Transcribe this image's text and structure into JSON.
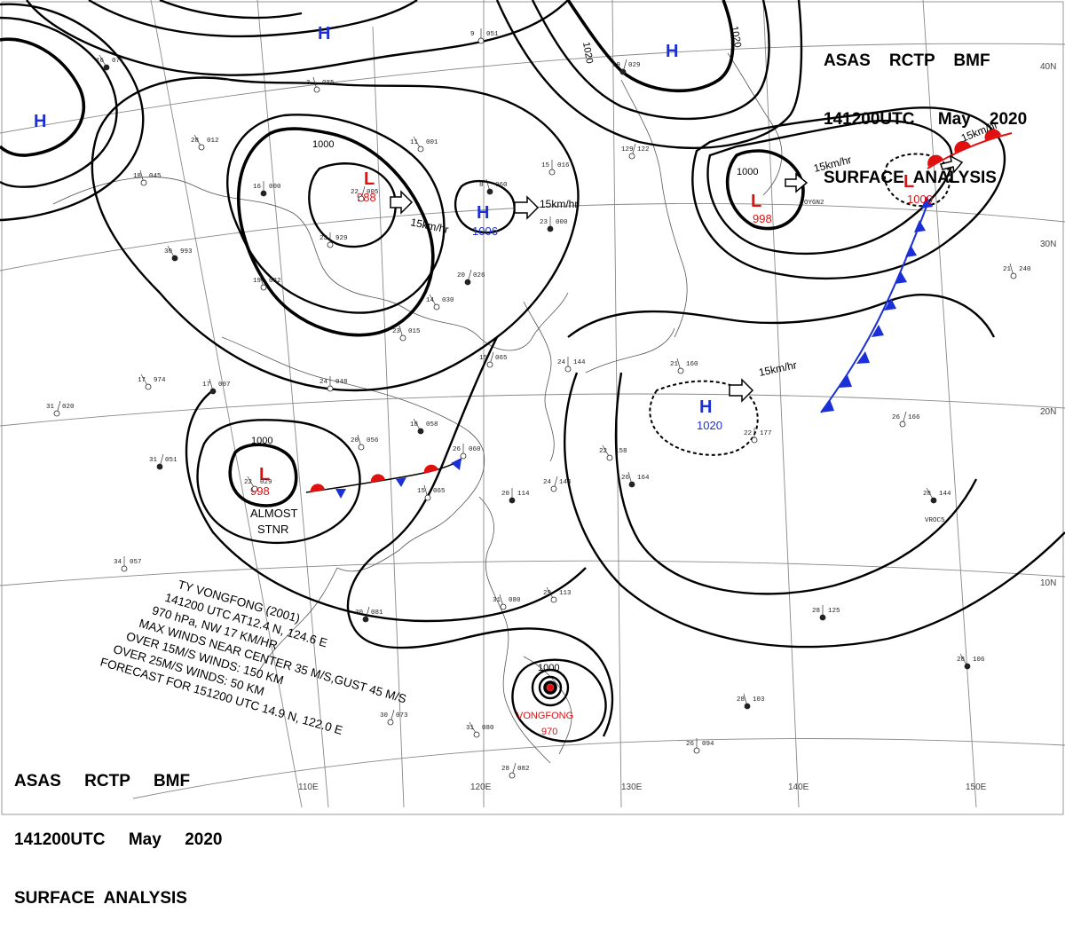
{
  "header_top": {
    "line1": "ASAS    RCTP    BMF",
    "line2": "141200UTC     May    2020",
    "line3": "SURFACE  ANALYSIS"
  },
  "header_bottom": {
    "line1": "ASAS     RCTP     BMF",
    "line2": "141200UTC     May     2020",
    "line3": "SURFACE  ANALYSIS"
  },
  "lat_labels": [
    "40N",
    "30N",
    "20N",
    "10N"
  ],
  "lon_labels": [
    "110E",
    "120E",
    "130E",
    "140E",
    "150E"
  ],
  "isobar_labels": [
    "1000",
    "1000",
    "1000",
    "1020",
    "1020",
    "1000",
    "1000"
  ],
  "pressure_centers": [
    {
      "type": "H",
      "value": ""
    },
    {
      "type": "H",
      "value": ""
    },
    {
      "type": "H",
      "value": ""
    },
    {
      "type": "H",
      "value": "1006"
    },
    {
      "type": "H",
      "value": "1020"
    },
    {
      "type": "L",
      "value": "988"
    },
    {
      "type": "L",
      "value": "998"
    },
    {
      "type": "L",
      "value": "998"
    },
    {
      "type": "L",
      "value": "1000"
    }
  ],
  "movement_labels": [
    "15km/hr",
    "15km/hr",
    "15km/hr",
    "15km/hr",
    "15km/hr",
    "15km/hr"
  ],
  "stationary_note": {
    "line1": "ALMOST",
    "line2": "STNR"
  },
  "typhoon": {
    "name": "VONGFONG",
    "pressure": "970",
    "isobar": "1000",
    "info_lines": [
      "TY  VONGFONG  (2001)",
      "141200 UTC  AT12.4 N, 124.6 E",
      "970 hPa, NW  17 KM/HR",
      "MAX WINDS NEAR CENTER 35 M/S,GUST 45 M/S",
      "OVER 15M/S WINDS: 150 KM",
      "OVER 25M/S WINDS: 50 KM",
      "FORECAST FOR 151200 UTC 14.9 N, 122.0 E"
    ]
  },
  "ship_ids": [
    "OYGN2",
    "VROC5"
  ],
  "stations": [
    {
      "t": "16",
      "p": "077"
    },
    {
      "t": "3",
      "p": "085"
    },
    {
      "t": "9",
      "p": "051"
    },
    {
      "t": "19",
      "p": "029"
    },
    {
      "t": "28",
      "p": "012"
    },
    {
      "t": "18",
      "p": "045"
    },
    {
      "t": "16",
      "p": "000"
    },
    {
      "t": "22",
      "p": "005"
    },
    {
      "t": "11",
      "p": "001"
    },
    {
      "t": "8",
      "p": "060"
    },
    {
      "t": "15",
      "p": "016"
    },
    {
      "t": "129",
      "p": "122"
    },
    {
      "t": "30",
      "p": "993"
    },
    {
      "t": "19",
      "p": "032"
    },
    {
      "t": "23",
      "p": "929"
    },
    {
      "t": "20",
      "p": "026"
    },
    {
      "t": "14",
      "p": "030"
    },
    {
      "t": "23",
      "p": "015"
    },
    {
      "t": "23",
      "p": "000"
    },
    {
      "t": "15",
      "p": "065"
    },
    {
      "t": "17",
      "p": "974"
    },
    {
      "t": "17",
      "p": "007"
    },
    {
      "t": "24",
      "p": "048"
    },
    {
      "t": "31",
      "p": "020"
    },
    {
      "t": "18",
      "p": "058"
    },
    {
      "t": "20",
      "p": "056"
    },
    {
      "t": "26",
      "p": "060"
    },
    {
      "t": "31",
      "p": "051"
    },
    {
      "t": "22",
      "p": "029"
    },
    {
      "t": "15",
      "p": "065"
    },
    {
      "t": "20",
      "p": "114"
    },
    {
      "t": "24",
      "p": "144"
    },
    {
      "t": "22",
      "p": "158"
    },
    {
      "t": "26",
      "p": "164"
    },
    {
      "t": "22",
      "p": "177"
    },
    {
      "t": "26",
      "p": "166"
    },
    {
      "t": "28",
      "p": "144"
    },
    {
      "t": "21",
      "p": "240"
    },
    {
      "t": "34",
      "p": "057"
    },
    {
      "t": "30",
      "p": "081"
    },
    {
      "t": "29",
      "p": "113"
    },
    {
      "t": "31",
      "p": "080"
    },
    {
      "t": "28",
      "p": "125"
    },
    {
      "t": "30",
      "p": "073"
    },
    {
      "t": "31",
      "p": "080"
    },
    {
      "t": "28",
      "p": "103"
    },
    {
      "t": "26",
      "p": "094"
    },
    {
      "t": "28",
      "p": "082"
    },
    {
      "t": "28",
      "p": "106"
    },
    {
      "t": "21",
      "p": "160"
    },
    {
      "t": "24",
      "p": "144"
    }
  ],
  "colors": {
    "high": "#1a2fd6",
    "low": "#e01010",
    "cold_front": "#1a2fd6",
    "warm_front": "#e01010",
    "isobar": "#000000",
    "grid": "#888888"
  }
}
